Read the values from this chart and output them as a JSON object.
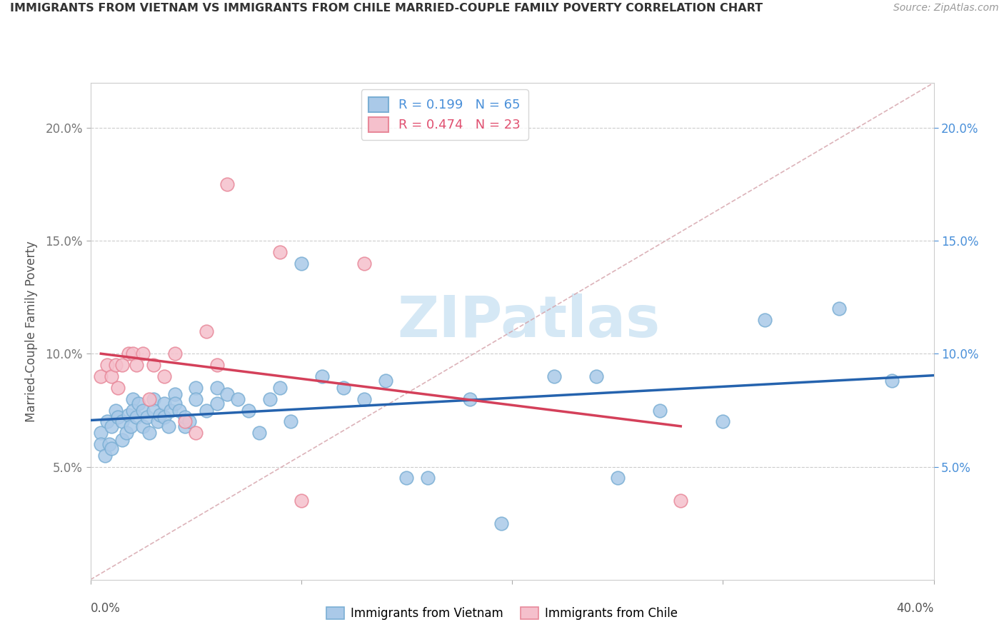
{
  "title": "IMMIGRANTS FROM VIETNAM VS IMMIGRANTS FROM CHILE MARRIED-COUPLE FAMILY POVERTY CORRELATION CHART",
  "source": "Source: ZipAtlas.com",
  "ylabel": "Married-Couple Family Poverty",
  "xlim": [
    0.0,
    0.4
  ],
  "ylim": [
    0.0,
    0.22
  ],
  "xticks": [
    0.0,
    0.1,
    0.2,
    0.3,
    0.4
  ],
  "yticks": [
    0.05,
    0.1,
    0.15,
    0.2
  ],
  "xtick_labels": [
    "0.0%",
    "",
    "",
    "",
    "40.0%"
  ],
  "ytick_labels_left": [
    "5.0%",
    "10.0%",
    "15.0%",
    "20.0%"
  ],
  "ytick_labels_right": [
    "5.0%",
    "10.0%",
    "15.0%",
    "20.0%"
  ],
  "vietnam_color": "#aac9e8",
  "vietnam_edge_color": "#7bafd4",
  "chile_color": "#f5c0cc",
  "chile_edge_color": "#e8899a",
  "vietnam_line_color": "#2563ae",
  "chile_line_color": "#d4405a",
  "diagonal_color": "#d4a0a8",
  "diagonal_style": "--",
  "legend_vietnam_label": "R = 0.199   N = 65",
  "legend_chile_label": "R = 0.474   N = 23",
  "legend_vietnam_color": "#4a90d9",
  "legend_chile_color": "#e05070",
  "watermark_text": "ZIPatlas",
  "watermark_color": "#d5e8f5",
  "bottom_legend_vietnam": "Immigrants from Vietnam",
  "bottom_legend_chile": "Immigrants from Chile",
  "vietnam_scatter_x": [
    0.005,
    0.005,
    0.007,
    0.008,
    0.009,
    0.01,
    0.01,
    0.012,
    0.013,
    0.015,
    0.015,
    0.017,
    0.018,
    0.019,
    0.02,
    0.02,
    0.022,
    0.023,
    0.025,
    0.025,
    0.027,
    0.028,
    0.03,
    0.03,
    0.032,
    0.033,
    0.035,
    0.035,
    0.037,
    0.038,
    0.04,
    0.04,
    0.042,
    0.045,
    0.045,
    0.047,
    0.05,
    0.05,
    0.055,
    0.06,
    0.06,
    0.065,
    0.07,
    0.075,
    0.08,
    0.085,
    0.09,
    0.095,
    0.1,
    0.11,
    0.12,
    0.13,
    0.14,
    0.15,
    0.16,
    0.18,
    0.195,
    0.22,
    0.24,
    0.25,
    0.27,
    0.3,
    0.32,
    0.355,
    0.38
  ],
  "vietnam_scatter_y": [
    0.065,
    0.06,
    0.055,
    0.07,
    0.06,
    0.068,
    0.058,
    0.075,
    0.072,
    0.07,
    0.062,
    0.065,
    0.073,
    0.068,
    0.08,
    0.075,
    0.072,
    0.078,
    0.075,
    0.068,
    0.072,
    0.065,
    0.08,
    0.075,
    0.07,
    0.073,
    0.078,
    0.072,
    0.068,
    0.075,
    0.082,
    0.078,
    0.075,
    0.068,
    0.072,
    0.07,
    0.085,
    0.08,
    0.075,
    0.085,
    0.078,
    0.082,
    0.08,
    0.075,
    0.065,
    0.08,
    0.085,
    0.07,
    0.14,
    0.09,
    0.085,
    0.08,
    0.088,
    0.045,
    0.045,
    0.08,
    0.025,
    0.09,
    0.09,
    0.045,
    0.075,
    0.07,
    0.115,
    0.12,
    0.088
  ],
  "chile_scatter_x": [
    0.005,
    0.008,
    0.01,
    0.012,
    0.013,
    0.015,
    0.018,
    0.02,
    0.022,
    0.025,
    0.028,
    0.03,
    0.035,
    0.04,
    0.045,
    0.05,
    0.055,
    0.06,
    0.065,
    0.09,
    0.1,
    0.13,
    0.28
  ],
  "chile_scatter_y": [
    0.09,
    0.095,
    0.09,
    0.095,
    0.085,
    0.095,
    0.1,
    0.1,
    0.095,
    0.1,
    0.08,
    0.095,
    0.09,
    0.1,
    0.07,
    0.065,
    0.11,
    0.095,
    0.175,
    0.145,
    0.035,
    0.14,
    0.035
  ]
}
